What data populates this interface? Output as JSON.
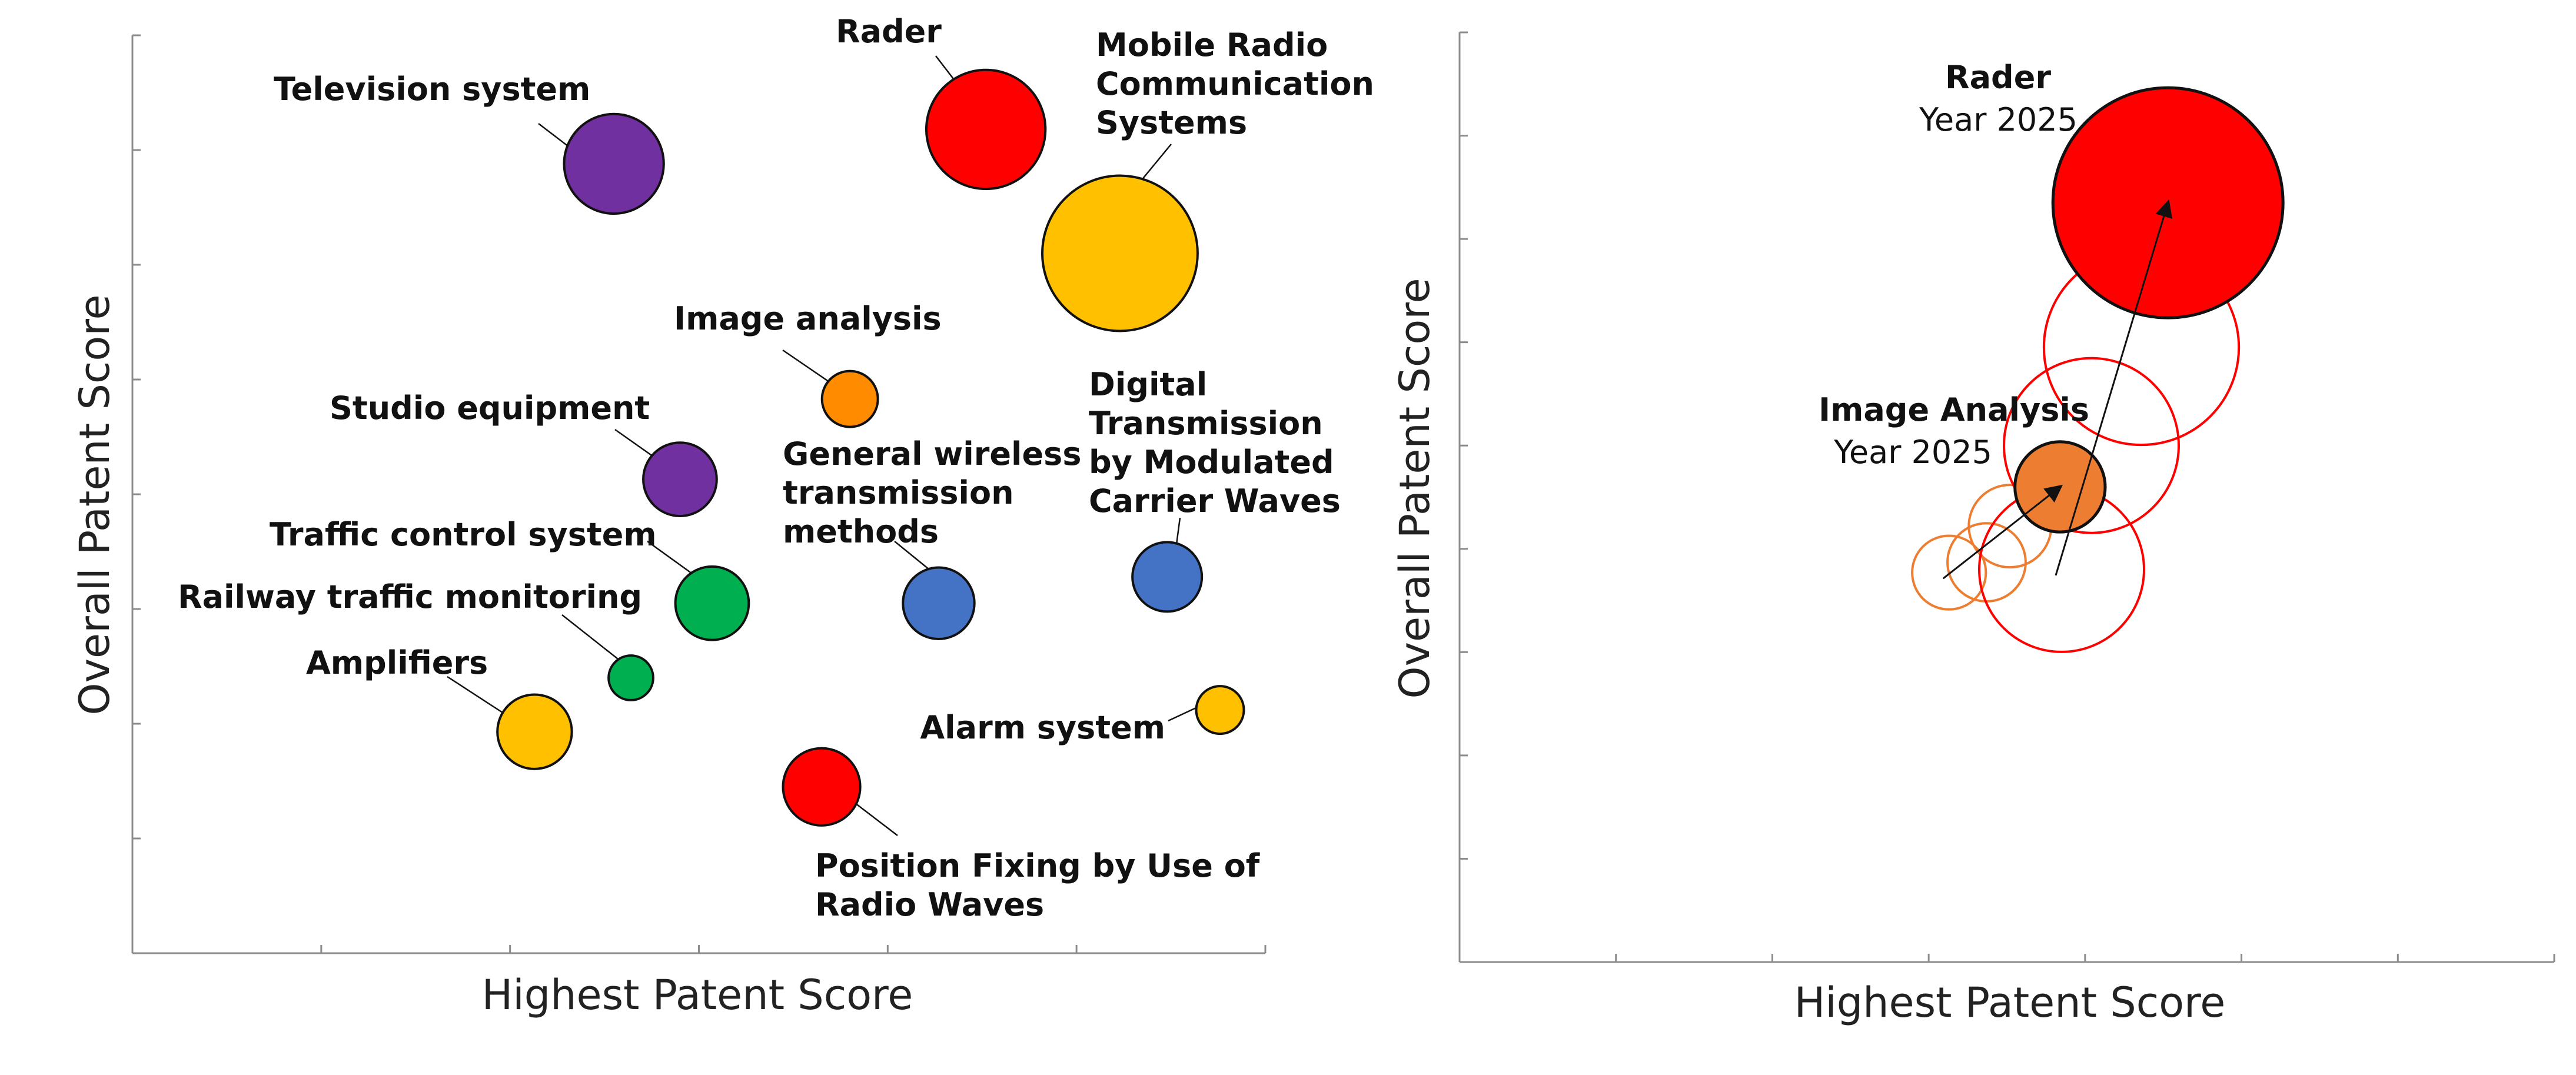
{
  "chart_data": [
    {
      "type": "bubble",
      "xlabel": "Highest Patent Score",
      "ylabel": "Overall Patent Score",
      "grid": false,
      "xlim": [
        0,
        600
      ],
      "ylim": [
        0,
        800
      ],
      "series": [
        {
          "label": "Rader",
          "x": 452,
          "y": 718,
          "size": 10,
          "color": "#ff0000"
        },
        {
          "label": "Mobile Radio Communication Systems",
          "x": 523,
          "y": 610,
          "size": 17,
          "color": "#ffc000"
        },
        {
          "label": "Television system",
          "x": 255,
          "y": 688,
          "size": 7,
          "color": "#7030a0"
        },
        {
          "label": "Image analysis",
          "x": 380,
          "y": 483,
          "size": 2.2,
          "color": "#ff8c00"
        },
        {
          "label": "Studio equipment",
          "x": 290,
          "y": 413,
          "size": 3.8,
          "color": "#7030a0"
        },
        {
          "label": "Digital Transmission by Modulated Carrier Waves",
          "x": 548,
          "y": 328,
          "size": 3.4,
          "color": "#4472c4"
        },
        {
          "label": "General wireless transmission methods",
          "x": 427,
          "y": 305,
          "size": 3.6,
          "color": "#4472c4"
        },
        {
          "label": "Traffic control system",
          "x": 307,
          "y": 305,
          "size": 3.8,
          "color": "#00b050"
        },
        {
          "label": "Railway traffic monitoring",
          "x": 264,
          "y": 240,
          "size": 1.4,
          "color": "#00b050"
        },
        {
          "label": "Amplifiers",
          "x": 213,
          "y": 193,
          "size": 3.9,
          "color": "#ffc000"
        },
        {
          "label": "Alarm system",
          "x": 576,
          "y": 212,
          "size": 1.6,
          "color": "#ffc000"
        },
        {
          "label": "Position Fixing by Use of Radio Waves",
          "x": 365,
          "y": 145,
          "size": 4.2,
          "color": "#ff0000"
        }
      ],
      "callouts": [
        {
          "label": "Rader"
        },
        {
          "label": "Mobile Radio Communication Systems",
          "lines": [
            "Mobile Radio",
            "Communication",
            "Systems"
          ]
        },
        {
          "label": "Television system"
        },
        {
          "label": "Image analysis"
        },
        {
          "label": "Studio equipment"
        },
        {
          "label": "Digital Transmission by Modulated Carrier Waves",
          "lines": [
            "Digital",
            "Transmission",
            "by Modulated",
            "Carrier Waves"
          ]
        },
        {
          "label": "General wireless transmission methods",
          "lines": [
            "General wireless",
            "transmission",
            "methods"
          ]
        },
        {
          "label": "Traffic control system"
        },
        {
          "label": "Railway traffic monitoring"
        },
        {
          "label": "Amplifiers"
        },
        {
          "label": "Alarm system"
        },
        {
          "label": "Position Fixing by Use of Radio Waves",
          "lines": [
            "Position Fixing by Use of",
            "Radio Waves"
          ]
        }
      ]
    },
    {
      "type": "bubble",
      "xlabel": "Highest Patent Score",
      "ylabel": "Overall Patent Score",
      "grid": false,
      "xlim": [
        0,
        700
      ],
      "ylim": [
        0,
        900
      ],
      "series": [
        {
          "name": "Rader",
          "color": "#ff0000",
          "points": [
            {
              "x": 385,
              "y": 380,
              "size": 4.0
            },
            {
              "x": 404,
              "y": 500,
              "size": 4.5
            },
            {
              "x": 436,
              "y": 595,
              "size": 5.6
            },
            {
              "x": 453,
              "y": 735,
              "size": 7.8
            }
          ],
          "final_label": "Rader",
          "final_year": "Year 2025"
        },
        {
          "name": "Image Analysis",
          "color": "#ed7d31",
          "points": [
            {
              "x": 313,
              "y": 377,
              "size": 0.8
            },
            {
              "x": 337,
              "y": 387,
              "size": 0.9
            },
            {
              "x": 352,
              "y": 422,
              "size": 1.0
            },
            {
              "x": 384,
              "y": 460,
              "size": 1.2
            }
          ],
          "final_label": "Image Analysis",
          "final_year": "Year 2025"
        }
      ]
    }
  ]
}
